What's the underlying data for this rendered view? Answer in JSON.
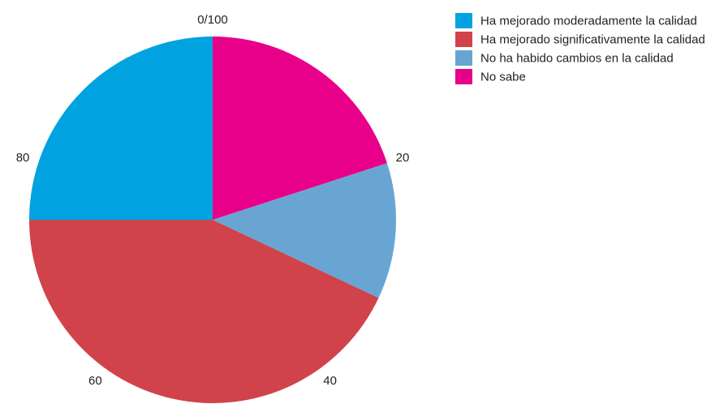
{
  "chart_data": {
    "type": "pie",
    "categories": [
      "Ha mejorado moderadamente la calidad",
      "Ha mejorado significativamente la calidad",
      "No ha habido cambios en la calidad",
      "No sabe"
    ],
    "values": [
      25,
      43,
      12,
      20
    ],
    "colors": [
      "#00a3e0",
      "#d0434a",
      "#69a5d2",
      "#e8008a"
    ],
    "slice_order": [
      "No sabe",
      "No ha habido cambios en la calidad",
      "Ha mejorado significativamente la calidad",
      "Ha mejorado moderadamente la calidad"
    ],
    "radial_axis": {
      "range": [
        0,
        100
      ],
      "ticks": [
        {
          "value": 0,
          "label": "0/100"
        },
        {
          "value": 20,
          "label": "20"
        },
        {
          "value": 40,
          "label": "40"
        },
        {
          "value": 60,
          "label": "60"
        },
        {
          "value": 80,
          "label": "80"
        }
      ],
      "direction": "clockwise",
      "start": "top"
    },
    "legend": {
      "placement": "top-right",
      "entries": [
        {
          "label": "Ha mejorado moderadamente la calidad",
          "color": "#00a3e0"
        },
        {
          "label": "Ha mejorado significativamente la calidad",
          "color": "#d0434a"
        },
        {
          "label": "No ha habido cambios en la calidad",
          "color": "#69a5d2"
        },
        {
          "label": "No sabe",
          "color": "#e8008a"
        }
      ]
    }
  }
}
